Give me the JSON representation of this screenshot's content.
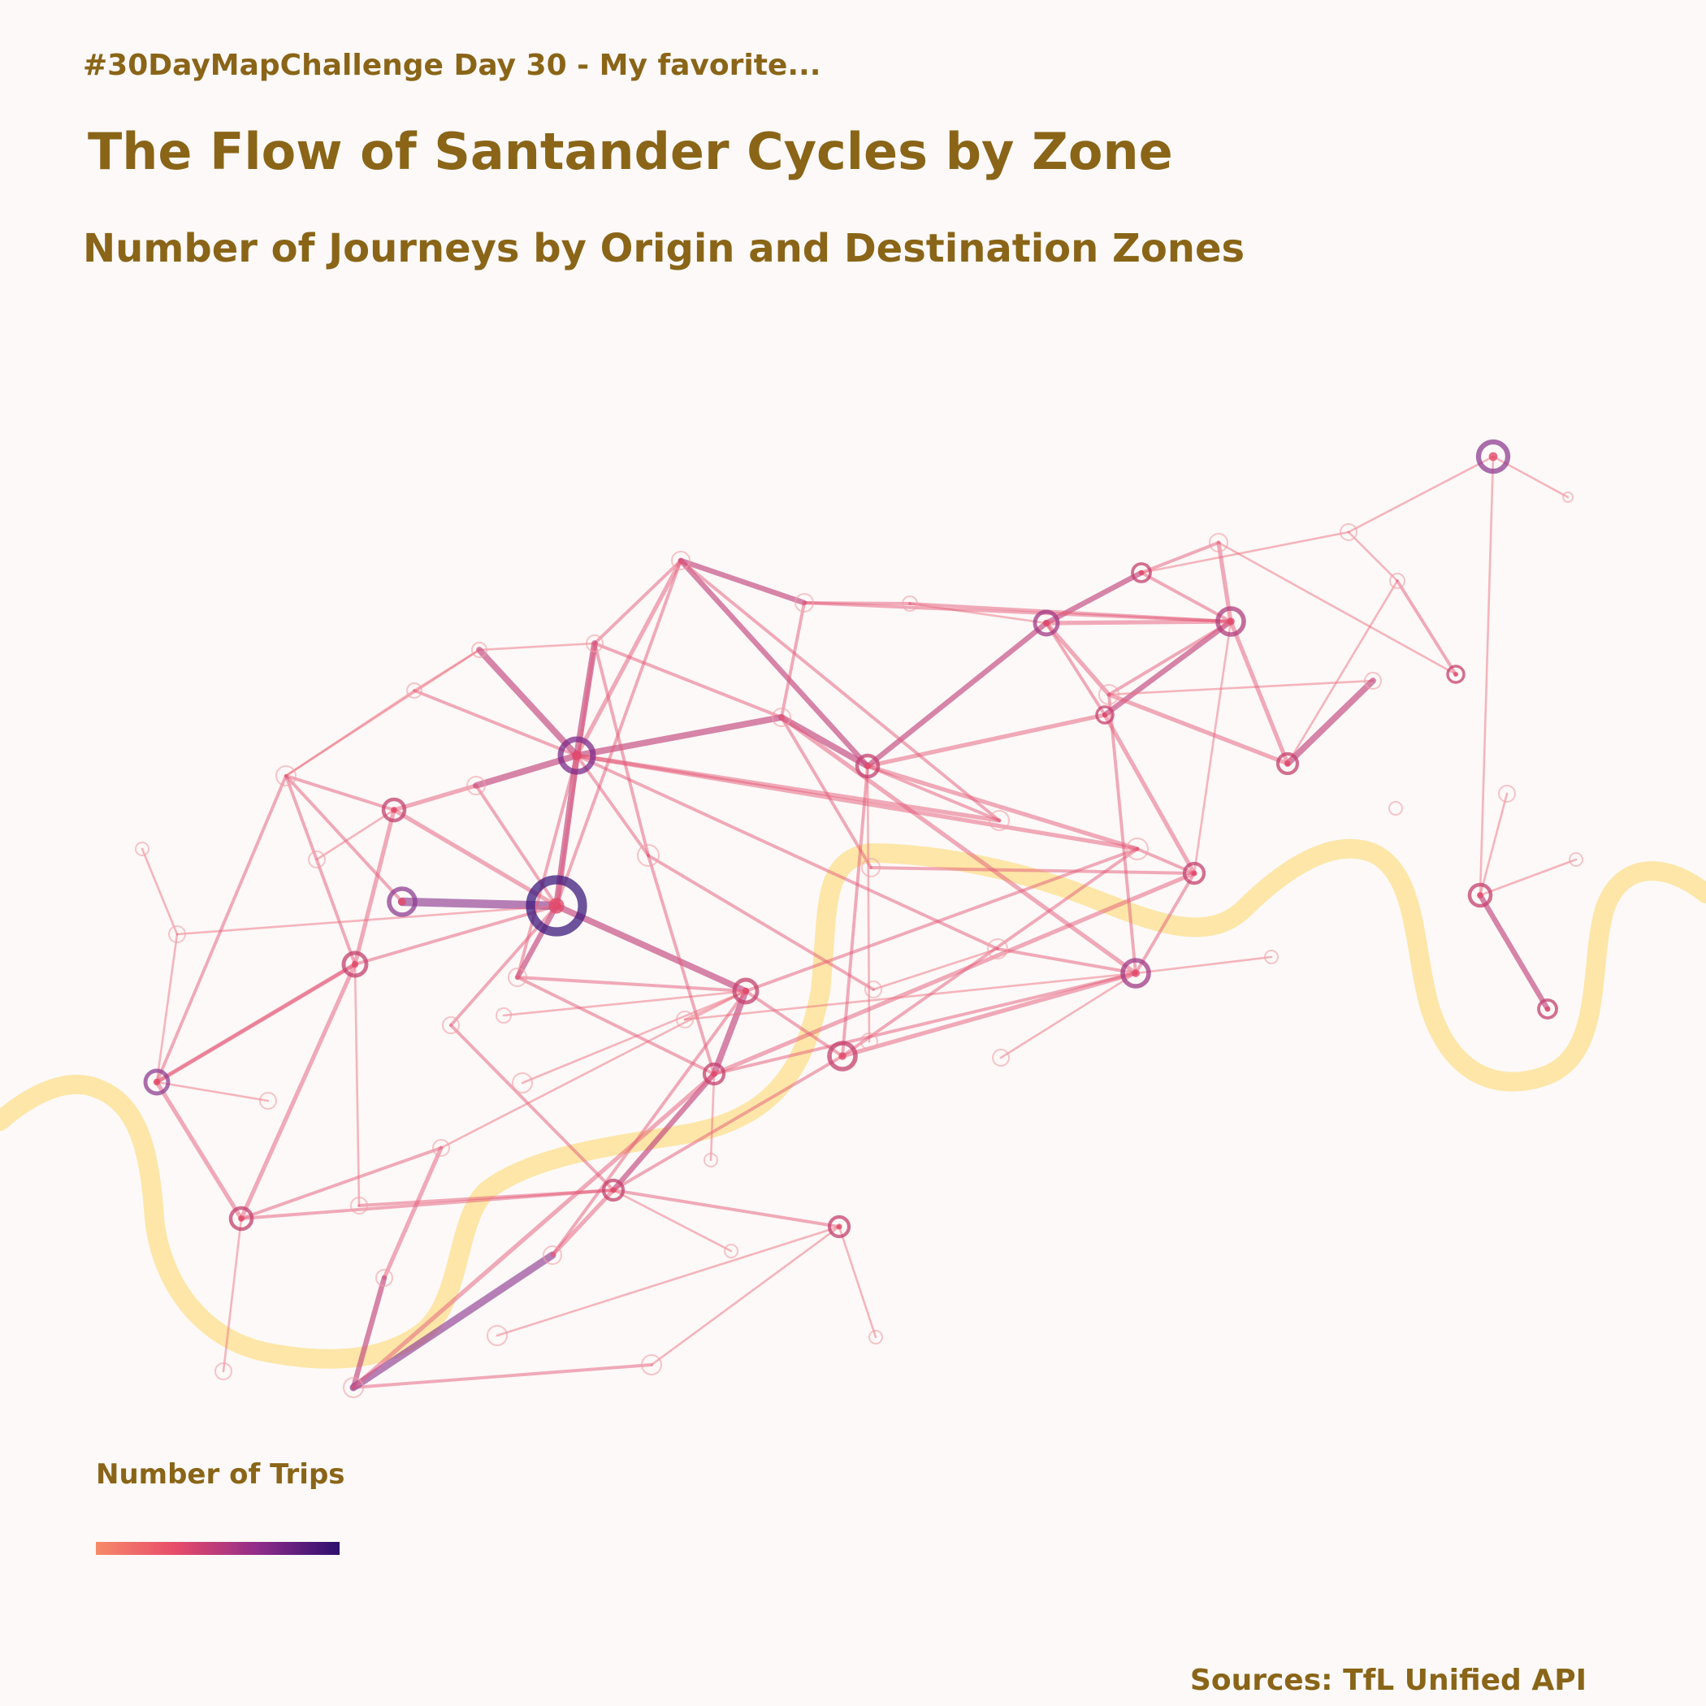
{
  "header": {
    "kicker": "#30DayMapChallenge Day 30 - My favorite...",
    "title": "The Flow of Santander Cycles by Zone",
    "subtitle": "Number of Journeys by Origin and Destination Zones"
  },
  "legend": {
    "title": "Number of Trips",
    "colors": [
      "#f78a6a",
      "#e64a6a",
      "#8f2d8a",
      "#2d0f6e"
    ]
  },
  "footer": {
    "source": "Sources: TfL Unified API"
  },
  "colors": {
    "background": "#fcf9f8",
    "river": "#fde6a8",
    "text": "#8a6518"
  }
}
